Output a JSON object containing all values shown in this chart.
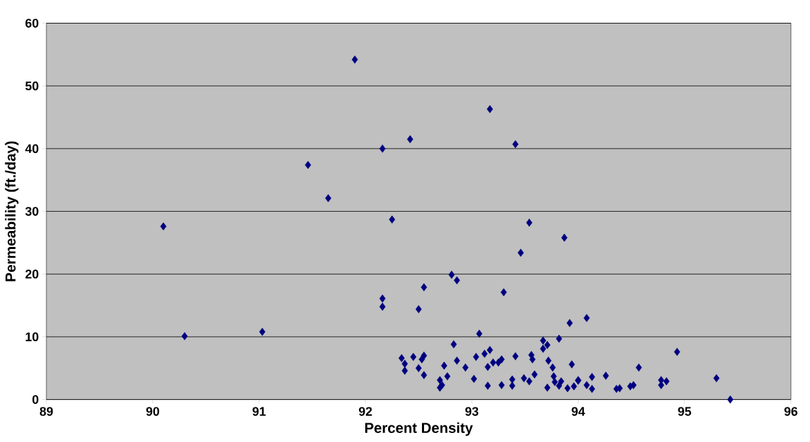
{
  "chart_data": {
    "type": "scatter",
    "xlabel": "Percent Density",
    "ylabel": "Permeability (ft./day)",
    "xlim": [
      89,
      96
    ],
    "ylim": [
      0,
      60
    ],
    "xticks": [
      89,
      90,
      91,
      92,
      93,
      94,
      95,
      96
    ],
    "yticks": [
      0,
      10,
      20,
      30,
      40,
      50,
      60
    ],
    "grid": "y",
    "marker": "diamond",
    "series": [
      {
        "color": "#000080",
        "x": [
          90.1,
          91.46,
          91.65,
          91.9,
          92.16,
          92.25,
          92.42,
          93.17,
          93.41,
          93.54,
          93.46,
          93.87,
          90.3,
          91.03,
          92.16,
          92.16,
          92.55,
          92.5,
          92.81,
          92.86,
          93.3,
          93.07,
          92.83,
          93.92,
          94.08,
          93.82,
          93.67,
          93.71,
          93.67,
          92.34,
          92.37,
          92.37,
          92.45,
          92.55,
          92.53,
          92.5,
          92.55,
          92.74,
          92.77,
          92.7,
          92.72,
          92.7,
          92.86,
          92.94,
          93.02,
          93.04,
          93.12,
          93.17,
          93.15,
          93.2,
          93.28,
          93.25,
          93.15,
          93.28,
          93.38,
          93.38,
          93.41,
          93.49,
          93.54,
          93.59,
          93.56,
          93.57,
          93.72,
          93.76,
          93.71,
          93.77,
          93.78,
          93.84,
          93.82,
          93.9,
          94.0,
          93.94,
          94.0,
          94.13,
          94.08,
          94.13,
          93.96,
          94.26,
          94.36,
          94.39,
          94.49,
          94.52,
          94.57,
          94.78,
          94.78,
          94.83,
          94.93,
          95.3,
          95.43
        ],
        "values": [
          27.6,
          37.4,
          32.1,
          54.2,
          40.0,
          28.7,
          41.5,
          46.3,
          40.7,
          28.2,
          23.4,
          25.8,
          10.1,
          10.8,
          16.1,
          14.8,
          17.9,
          14.4,
          19.9,
          19.0,
          17.1,
          10.5,
          8.8,
          12.2,
          13.0,
          9.7,
          9.4,
          8.7,
          8.1,
          6.6,
          5.7,
          4.6,
          6.8,
          7.0,
          6.4,
          5.0,
          3.9,
          5.4,
          3.7,
          3.1,
          2.3,
          1.9,
          6.2,
          5.1,
          3.3,
          6.8,
          7.3,
          7.9,
          5.2,
          5.9,
          6.4,
          5.9,
          2.2,
          2.3,
          3.2,
          2.2,
          6.9,
          3.4,
          2.9,
          4.0,
          7.1,
          6.4,
          6.2,
          5.1,
          1.9,
          3.7,
          2.8,
          2.9,
          2.2,
          1.8,
          3.0,
          5.6,
          3.1,
          3.6,
          2.3,
          1.7,
          2.1,
          3.8,
          1.7,
          1.8,
          2.1,
          2.3,
          5.1,
          3.1,
          2.3,
          2.9,
          7.6,
          3.4,
          0.0
        ]
      }
    ]
  }
}
